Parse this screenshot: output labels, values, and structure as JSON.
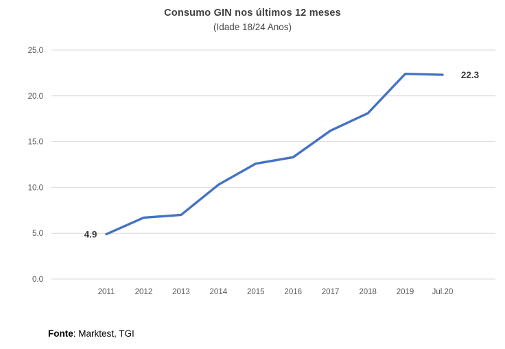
{
  "page": {
    "background": "#ffffff"
  },
  "header": {
    "title": "Consumo GIN nos últimos 12 meses",
    "subtitle": "(Idade 18/24 Anos)"
  },
  "footer": {
    "source_label": "Fonte",
    "source_rest": ": Marktest, TGI"
  },
  "colors": {
    "line": "#4472C4",
    "gridline": "#D9D9D9",
    "tick_text": "#595959",
    "title_text": "#404040",
    "data_label_text": "#3B3B3B"
  },
  "chart_data": {
    "type": "line",
    "title": "Consumo GIN nos últimos 12 meses",
    "subtitle": "(Idade 18/24 Anos)",
    "categories": [
      "2011",
      "2012",
      "2013",
      "2014",
      "2015",
      "2016",
      "2017",
      "2018",
      "2019",
      "Jul.20"
    ],
    "values": [
      4.9,
      6.7,
      7.0,
      10.3,
      12.6,
      13.3,
      16.2,
      18.1,
      22.4,
      22.3
    ],
    "xlabel": "",
    "ylabel": "",
    "ylim": [
      0,
      25
    ],
    "y_ticks": [
      0,
      5,
      10,
      15,
      20,
      25
    ],
    "y_tick_labels": [
      "0.0",
      "5.0",
      "10.0",
      "15.0",
      "20.0",
      "25.0"
    ],
    "grid": "horizontal",
    "legend": "none",
    "point_labels": [
      {
        "index": 0,
        "text": "4.9",
        "side": "left"
      },
      {
        "index": 9,
        "text": "22.3",
        "side": "right"
      }
    ]
  }
}
